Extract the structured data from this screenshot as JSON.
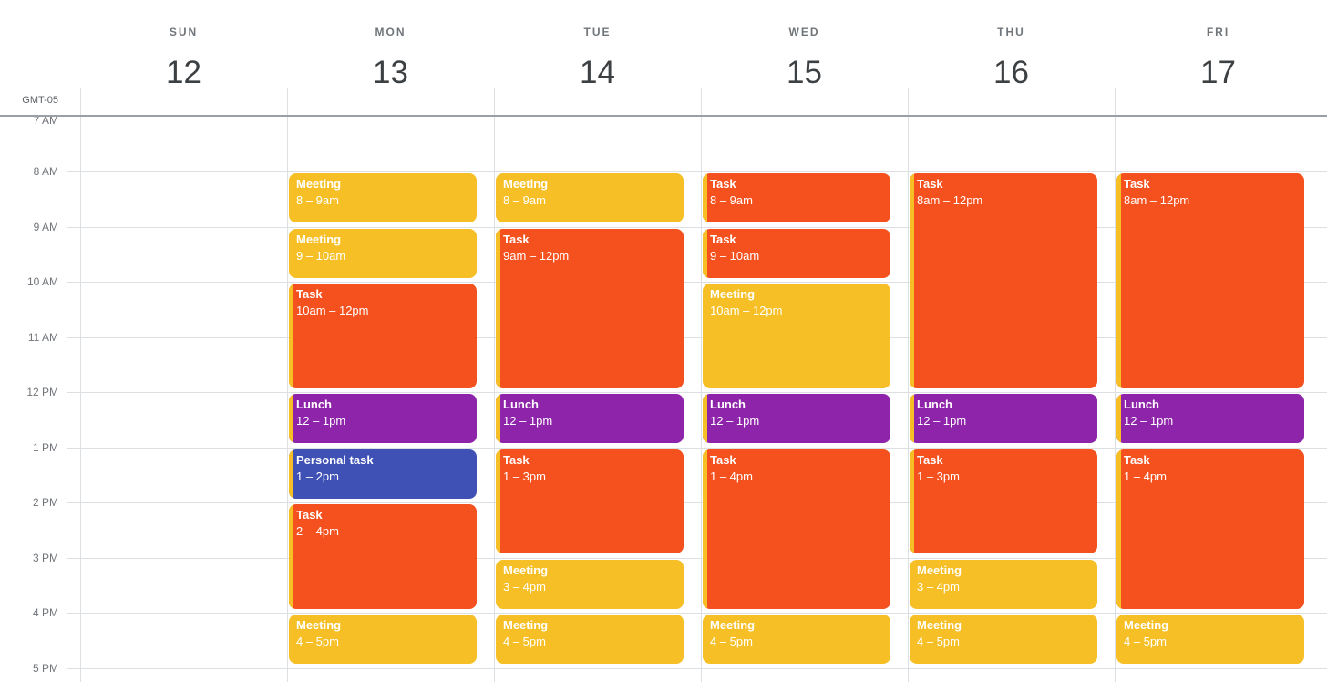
{
  "header": {
    "timezone": "GMT-05",
    "days": [
      {
        "name": "SUN",
        "date": "12"
      },
      {
        "name": "MON",
        "date": "13"
      },
      {
        "name": "TUE",
        "date": "14"
      },
      {
        "name": "WED",
        "date": "15"
      },
      {
        "name": "THU",
        "date": "16"
      },
      {
        "name": "FRI",
        "date": "17"
      }
    ]
  },
  "time_axis": {
    "labels": [
      "7 AM",
      "8 AM",
      "9 AM",
      "10 AM",
      "11 AM",
      "12 PM",
      "1 PM",
      "2 PM",
      "3 PM",
      "4 PM",
      "5 PM"
    ]
  },
  "colors": {
    "banana": "#F6BF26",
    "tangerine": "#F4511E",
    "grape": "#8E24AA",
    "blueberry": "#3F51B5"
  },
  "events": [
    {
      "day": "MON",
      "title": "Meeting",
      "time_label": "8 – 9am",
      "start": 8,
      "end": 9,
      "color": "banana",
      "overlap_indicator": false
    },
    {
      "day": "MON",
      "title": "Meeting",
      "time_label": "9 – 10am",
      "start": 9,
      "end": 10,
      "color": "banana",
      "overlap_indicator": false
    },
    {
      "day": "MON",
      "title": "Task",
      "time_label": "10am – 12pm",
      "start": 10,
      "end": 12,
      "color": "tangerine",
      "overlap_indicator": true
    },
    {
      "day": "MON",
      "title": "Lunch",
      "time_label": "12 – 1pm",
      "start": 12,
      "end": 13,
      "color": "grape",
      "overlap_indicator": true
    },
    {
      "day": "MON",
      "title": "Personal task",
      "time_label": "1 – 2pm",
      "start": 13,
      "end": 14,
      "color": "blueberry",
      "overlap_indicator": true
    },
    {
      "day": "MON",
      "title": "Task",
      "time_label": "2 – 4pm",
      "start": 14,
      "end": 16,
      "color": "tangerine",
      "overlap_indicator": true
    },
    {
      "day": "MON",
      "title": "Meeting",
      "time_label": "4 – 5pm",
      "start": 16,
      "end": 17,
      "color": "banana",
      "overlap_indicator": false
    },
    {
      "day": "TUE",
      "title": "Meeting",
      "time_label": "8 – 9am",
      "start": 8,
      "end": 9,
      "color": "banana",
      "overlap_indicator": false
    },
    {
      "day": "TUE",
      "title": "Task",
      "time_label": "9am – 12pm",
      "start": 9,
      "end": 12,
      "color": "tangerine",
      "overlap_indicator": true
    },
    {
      "day": "TUE",
      "title": "Lunch",
      "time_label": "12 – 1pm",
      "start": 12,
      "end": 13,
      "color": "grape",
      "overlap_indicator": true
    },
    {
      "day": "TUE",
      "title": "Task",
      "time_label": "1 – 3pm",
      "start": 13,
      "end": 15,
      "color": "tangerine",
      "overlap_indicator": true
    },
    {
      "day": "TUE",
      "title": "Meeting",
      "time_label": "3 – 4pm",
      "start": 15,
      "end": 16,
      "color": "banana",
      "overlap_indicator": false
    },
    {
      "day": "TUE",
      "title": "Meeting",
      "time_label": "4 – 5pm",
      "start": 16,
      "end": 17,
      "color": "banana",
      "overlap_indicator": false
    },
    {
      "day": "WED",
      "title": "Task",
      "time_label": "8 – 9am",
      "start": 8,
      "end": 9,
      "color": "tangerine",
      "overlap_indicator": true
    },
    {
      "day": "WED",
      "title": "Task",
      "time_label": "9 – 10am",
      "start": 9,
      "end": 10,
      "color": "tangerine",
      "overlap_indicator": true
    },
    {
      "day": "WED",
      "title": "Meeting",
      "time_label": "10am – 12pm",
      "start": 10,
      "end": 12,
      "color": "banana",
      "overlap_indicator": false
    },
    {
      "day": "WED",
      "title": "Lunch",
      "time_label": "12 – 1pm",
      "start": 12,
      "end": 13,
      "color": "grape",
      "overlap_indicator": true
    },
    {
      "day": "WED",
      "title": "Task",
      "time_label": "1 – 4pm",
      "start": 13,
      "end": 16,
      "color": "tangerine",
      "overlap_indicator": true
    },
    {
      "day": "WED",
      "title": "Meeting",
      "time_label": "4 – 5pm",
      "start": 16,
      "end": 17,
      "color": "banana",
      "overlap_indicator": false
    },
    {
      "day": "THU",
      "title": "Task",
      "time_label": "8am – 12pm",
      "start": 8,
      "end": 12,
      "color": "tangerine",
      "overlap_indicator": true
    },
    {
      "day": "THU",
      "title": "Lunch",
      "time_label": "12 – 1pm",
      "start": 12,
      "end": 13,
      "color": "grape",
      "overlap_indicator": true
    },
    {
      "day": "THU",
      "title": "Task",
      "time_label": "1 – 3pm",
      "start": 13,
      "end": 15,
      "color": "tangerine",
      "overlap_indicator": true
    },
    {
      "day": "THU",
      "title": "Meeting",
      "time_label": "3 – 4pm",
      "start": 15,
      "end": 16,
      "color": "banana",
      "overlap_indicator": false
    },
    {
      "day": "THU",
      "title": "Meeting",
      "time_label": "4 – 5pm",
      "start": 16,
      "end": 17,
      "color": "banana",
      "overlap_indicator": false
    },
    {
      "day": "FRI",
      "title": "Task",
      "time_label": "8am – 12pm",
      "start": 8,
      "end": 12,
      "color": "tangerine",
      "overlap_indicator": true
    },
    {
      "day": "FRI",
      "title": "Lunch",
      "time_label": "12 – 1pm",
      "start": 12,
      "end": 13,
      "color": "grape",
      "overlap_indicator": true
    },
    {
      "day": "FRI",
      "title": "Task",
      "time_label": "1 – 4pm",
      "start": 13,
      "end": 16,
      "color": "tangerine",
      "overlap_indicator": true
    },
    {
      "day": "FRI",
      "title": "Meeting",
      "time_label": "4 – 5pm",
      "start": 16,
      "end": 17,
      "color": "banana",
      "overlap_indicator": false
    }
  ]
}
